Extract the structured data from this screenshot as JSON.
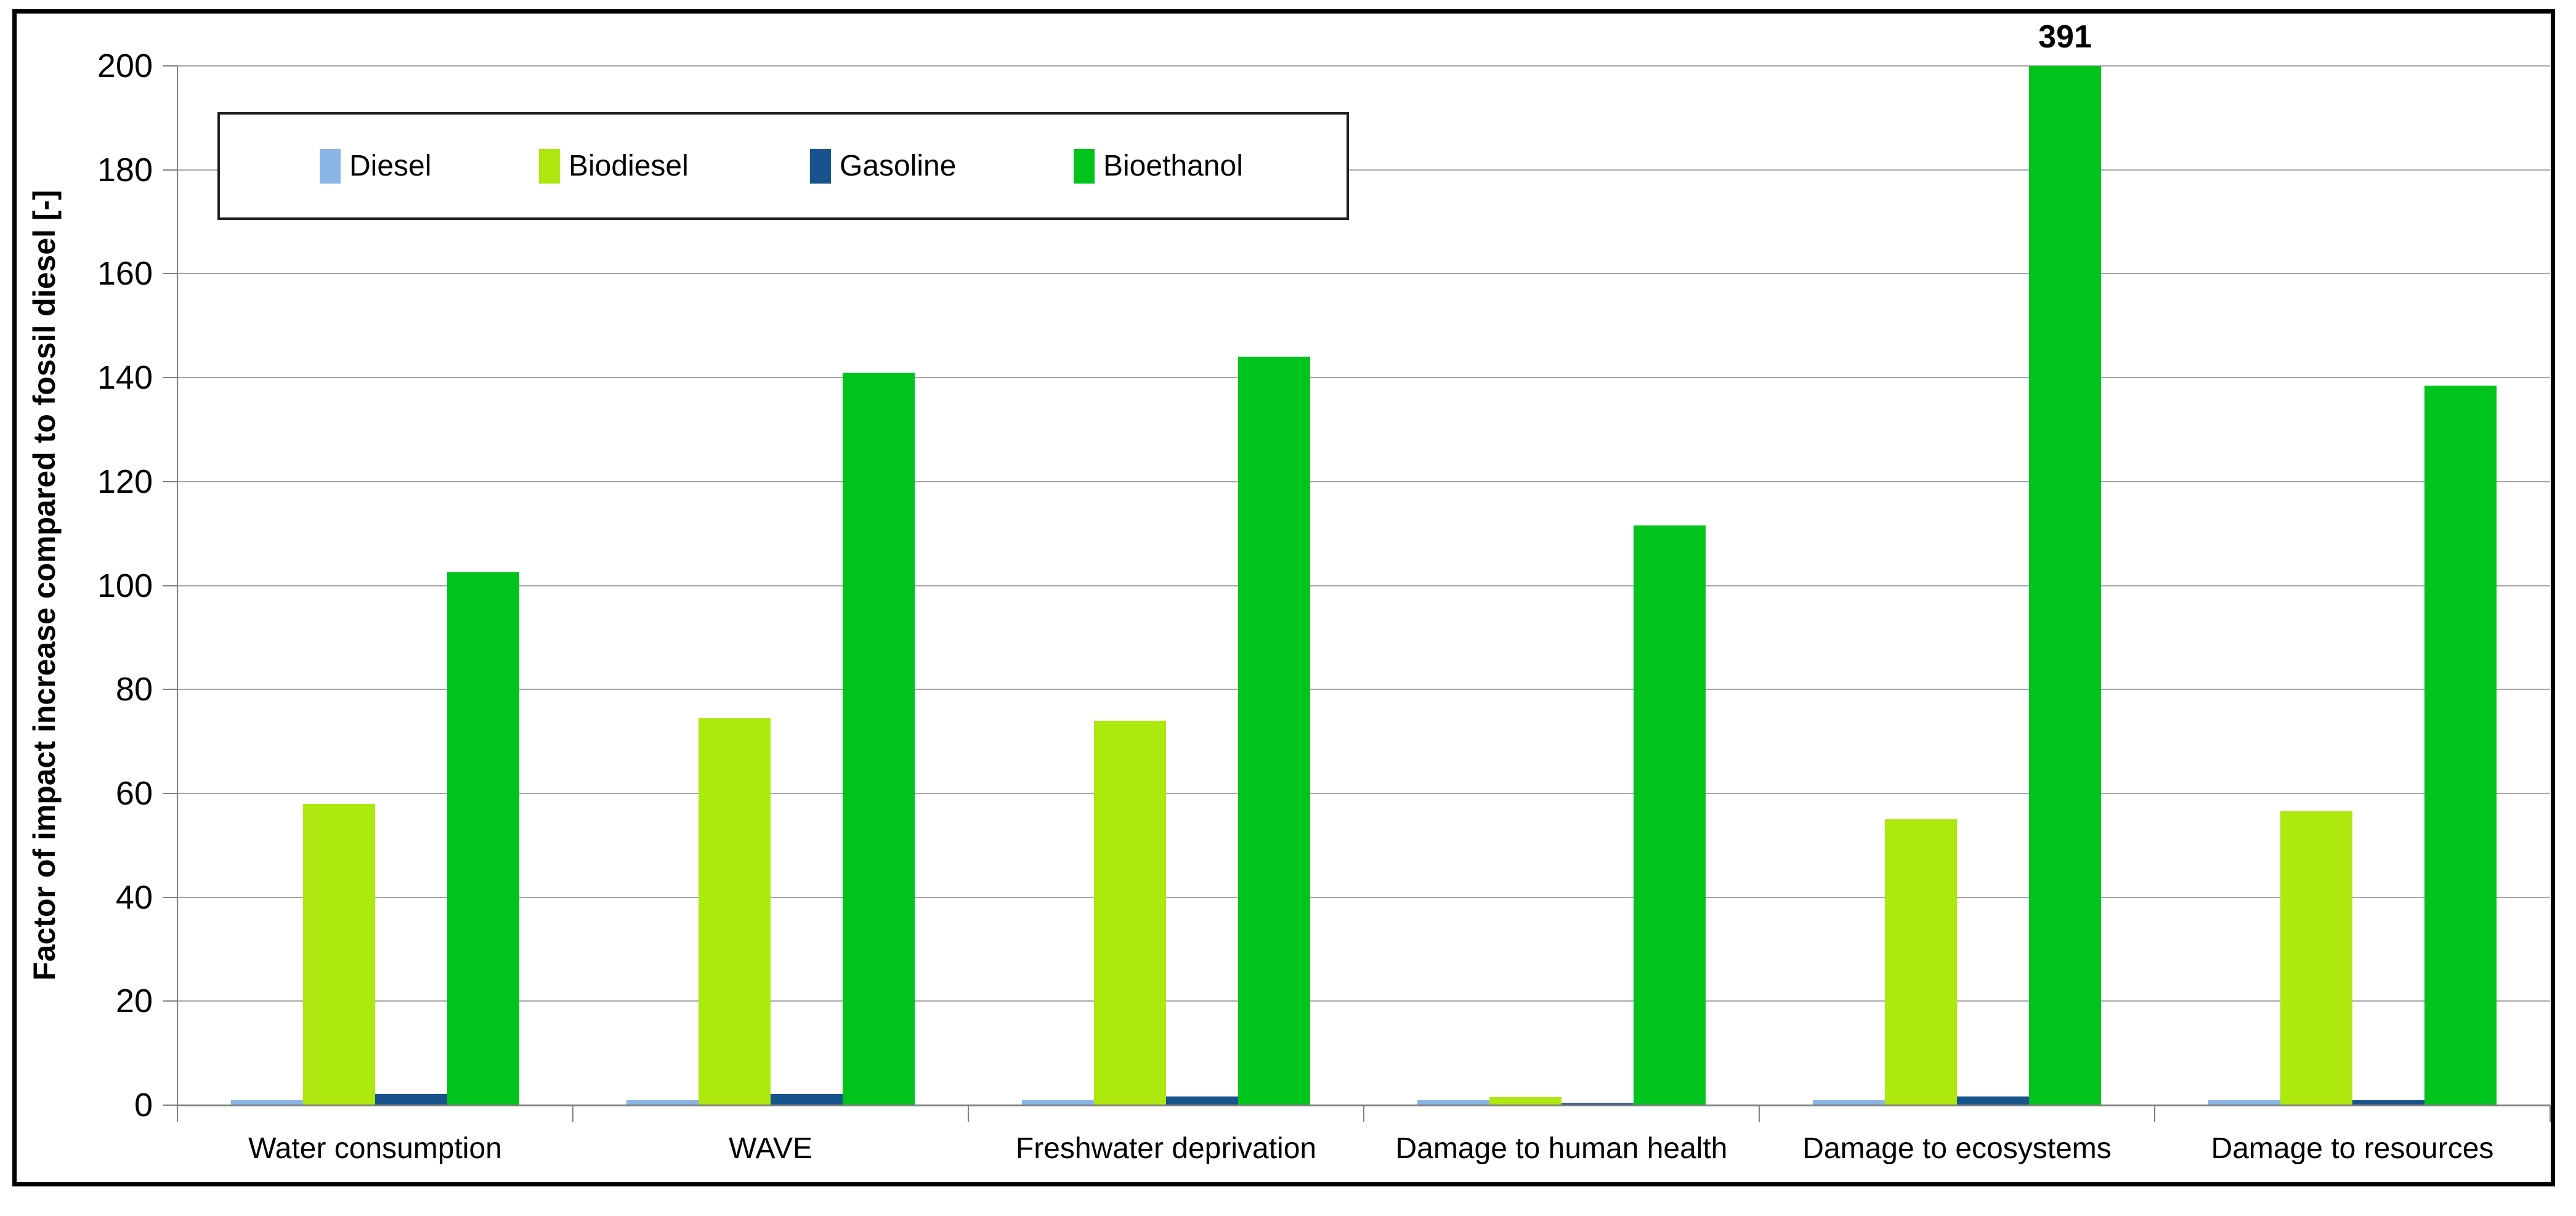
{
  "chart_data": {
    "type": "bar",
    "title": "",
    "ylabel": "Factor of impact increase compared to fossil diesel [-]",
    "xlabel": "",
    "ylim": [
      0,
      200
    ],
    "ytick_step": 20,
    "yticks": [
      0,
      20,
      40,
      60,
      80,
      100,
      120,
      140,
      160,
      180,
      200
    ],
    "grid": true,
    "legend_position": "top-left-inside",
    "categories": [
      "Water consumption",
      "WAVE",
      "Freshwater deprivation",
      "Damage to human health",
      "Damage to ecosystems",
      "Damage to resources"
    ],
    "series": [
      {
        "name": "Diesel",
        "color": "#8AB6E7",
        "values": [
          1,
          1,
          1,
          1,
          1,
          1
        ]
      },
      {
        "name": "Biodiesel",
        "color": "#ADE80E",
        "values": [
          58,
          74.5,
          74,
          1.6,
          55,
          56.5
        ]
      },
      {
        "name": "Gasoline",
        "color": "#17538C",
        "values": [
          2.1,
          2.1,
          1.7,
          0.4,
          1.7,
          0.9
        ]
      },
      {
        "name": "Bioethanol",
        "color": "#00C31D",
        "values": [
          102.5,
          141,
          144,
          111.5,
          391,
          138.5
        ]
      }
    ],
    "annotation": {
      "text": "391",
      "series": "Bioethanol",
      "category": "Damage to ecosystems",
      "value": 391,
      "note": "bar clipped at axis max 200"
    },
    "colors": {
      "gridline": "#A6A6A6",
      "axis": "#808080",
      "frame_border": "#000000",
      "text": "#000000",
      "background": "#FFFFFF"
    }
  }
}
